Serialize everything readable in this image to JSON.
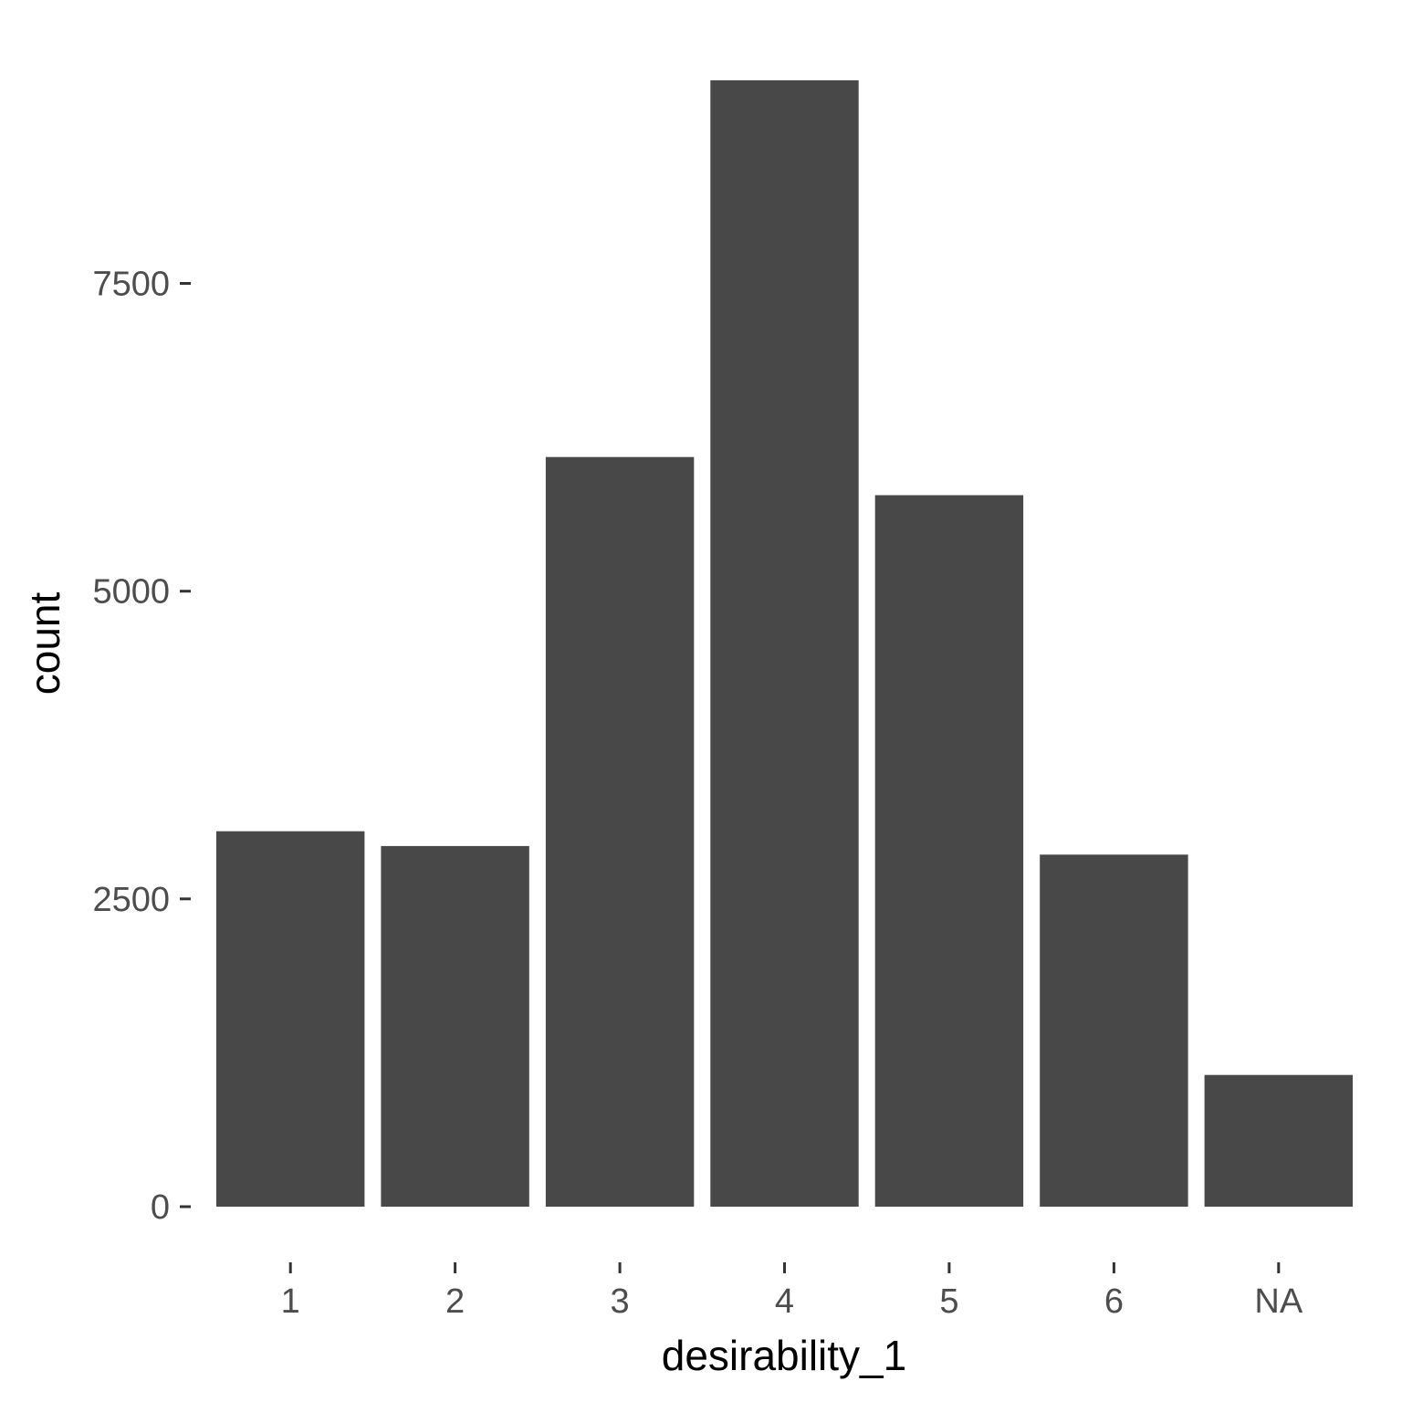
{
  "chart_data": {
    "type": "bar",
    "categories": [
      "1",
      "2",
      "3",
      "4",
      "5",
      "6",
      "NA"
    ],
    "values": [
      3050,
      2930,
      6090,
      9150,
      5780,
      2860,
      1070
    ],
    "xlabel": "desirability_1",
    "ylabel": "count",
    "ylim": [
      0,
      9150
    ],
    "yticks": [
      0,
      2500,
      5000,
      7500
    ],
    "ytick_labels": [
      "0",
      "2500",
      "5000",
      "7500"
    ],
    "grid": false,
    "legend": "none",
    "bar_color": "#484848",
    "tick_color": "#333333",
    "tick_label_color": "#4d4d4d",
    "background": "#ffffff"
  }
}
